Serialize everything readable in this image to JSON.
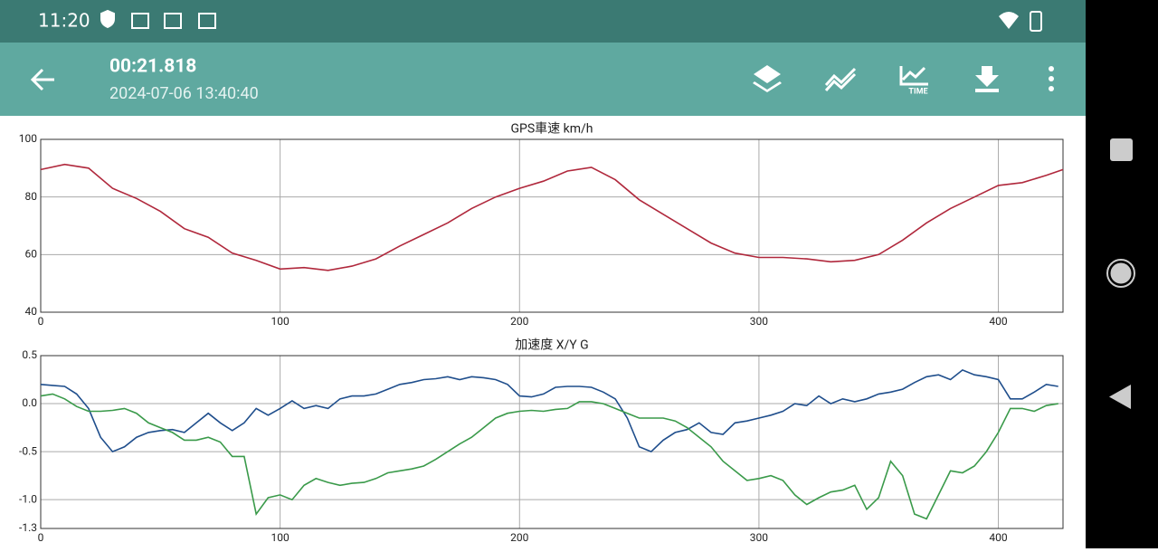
{
  "status_bar": {
    "time": "11:20"
  },
  "app_bar": {
    "title": "00:21.818",
    "subtitle": "2024-07-06 13:40:40",
    "time_icon_label": "TIME"
  },
  "chart_data": [
    {
      "type": "line",
      "title": "GPS車速 km/h",
      "x": [
        0,
        10,
        20,
        30,
        40,
        50,
        60,
        70,
        80,
        90,
        100,
        110,
        120,
        130,
        140,
        150,
        160,
        170,
        180,
        190,
        200,
        210,
        220,
        230,
        240,
        250,
        260,
        270,
        280,
        290,
        300,
        310,
        320,
        330,
        340,
        350,
        360,
        370,
        380,
        390,
        400,
        410,
        420,
        427
      ],
      "series": [
        {
          "color": "#b0283c",
          "values": [
            89.5,
            91.3,
            90,
            83,
            79.5,
            75,
            69,
            66,
            60.5,
            58,
            55,
            55.5,
            54.5,
            56,
            58.5,
            63,
            67,
            71,
            76,
            80,
            83,
            85.5,
            89,
            90.3,
            86,
            79,
            74,
            69,
            64,
            60.5,
            59,
            59,
            58.5,
            57.5,
            58,
            60,
            65,
            71,
            76,
            80,
            84,
            85,
            87.5,
            89.5
          ]
        }
      ],
      "xlim": [
        0,
        427
      ],
      "ylim": [
        40,
        100
      ],
      "xticks": [
        0,
        100,
        200,
        300,
        400
      ],
      "yticks": [
        40,
        60,
        80,
        100
      ],
      "grid": true
    },
    {
      "type": "line",
      "title": "加速度 X/Y G",
      "x": [
        0,
        5,
        10,
        15,
        20,
        25,
        30,
        35,
        40,
        45,
        50,
        55,
        60,
        65,
        70,
        75,
        80,
        85,
        90,
        95,
        100,
        105,
        110,
        115,
        120,
        125,
        130,
        135,
        140,
        145,
        150,
        155,
        160,
        165,
        170,
        175,
        180,
        185,
        190,
        195,
        200,
        205,
        210,
        215,
        220,
        225,
        230,
        235,
        240,
        245,
        250,
        255,
        260,
        265,
        270,
        275,
        280,
        285,
        290,
        295,
        300,
        305,
        310,
        315,
        320,
        325,
        330,
        335,
        340,
        345,
        350,
        355,
        360,
        365,
        370,
        375,
        380,
        385,
        390,
        395,
        400,
        405,
        410,
        415,
        420,
        425
      ],
      "series": [
        {
          "color": "#1f4e8c",
          "values": [
            0.2,
            0.19,
            0.18,
            0.1,
            -0.05,
            -0.35,
            -0.5,
            -0.45,
            -0.35,
            -0.3,
            -0.28,
            -0.27,
            -0.3,
            -0.2,
            -0.1,
            -0.2,
            -0.28,
            -0.2,
            -0.05,
            -0.12,
            -0.05,
            0.03,
            -0.05,
            -0.02,
            -0.05,
            0.05,
            0.08,
            0.08,
            0.1,
            0.15,
            0.2,
            0.22,
            0.25,
            0.26,
            0.28,
            0.25,
            0.28,
            0.27,
            0.25,
            0.2,
            0.08,
            0.07,
            0.1,
            0.17,
            0.18,
            0.18,
            0.17,
            0.12,
            0.05,
            -0.15,
            -0.45,
            -0.5,
            -0.38,
            -0.3,
            -0.27,
            -0.2,
            -0.3,
            -0.32,
            -0.2,
            -0.18,
            -0.15,
            -0.12,
            -0.08,
            0.0,
            -0.02,
            0.08,
            0.0,
            0.05,
            0.02,
            0.05,
            0.1,
            0.12,
            0.15,
            0.22,
            0.28,
            0.3,
            0.25,
            0.35,
            0.3,
            0.28,
            0.25,
            0.05,
            0.05,
            0.12,
            0.2,
            0.18
          ]
        },
        {
          "color": "#3a9a4a",
          "values": [
            0.08,
            0.1,
            0.05,
            -0.03,
            -0.08,
            -0.08,
            -0.07,
            -0.05,
            -0.1,
            -0.2,
            -0.25,
            -0.3,
            -0.38,
            -0.38,
            -0.35,
            -0.4,
            -0.55,
            -0.55,
            -1.15,
            -0.98,
            -0.95,
            -1.0,
            -0.85,
            -0.78,
            -0.82,
            -0.85,
            -0.83,
            -0.82,
            -0.78,
            -0.72,
            -0.7,
            -0.68,
            -0.65,
            -0.58,
            -0.5,
            -0.42,
            -0.35,
            -0.25,
            -0.15,
            -0.1,
            -0.08,
            -0.07,
            -0.08,
            -0.06,
            -0.05,
            0.02,
            0.02,
            0.0,
            -0.05,
            -0.1,
            -0.15,
            -0.15,
            -0.15,
            -0.18,
            -0.25,
            -0.35,
            -0.45,
            -0.6,
            -0.7,
            -0.8,
            -0.78,
            -0.75,
            -0.8,
            -0.95,
            -1.05,
            -0.98,
            -0.92,
            -0.9,
            -0.85,
            -1.1,
            -0.98,
            -0.6,
            -0.75,
            -1.15,
            -1.2,
            -0.95,
            -0.7,
            -0.72,
            -0.65,
            -0.5,
            -0.3,
            -0.05,
            -0.05,
            -0.08,
            -0.02,
            0.0
          ]
        }
      ],
      "xlim": [
        0,
        427
      ],
      "ylim": [
        -1.3,
        0.5
      ],
      "xticks": [
        0,
        100,
        200,
        300,
        400
      ],
      "yticks": [
        -1.3,
        {
          "value": -1.0,
          "label": "-1.0"
        },
        -0.5,
        {
          "value": 0,
          "label": "0.0"
        },
        0.5
      ],
      "grid": true
    }
  ]
}
